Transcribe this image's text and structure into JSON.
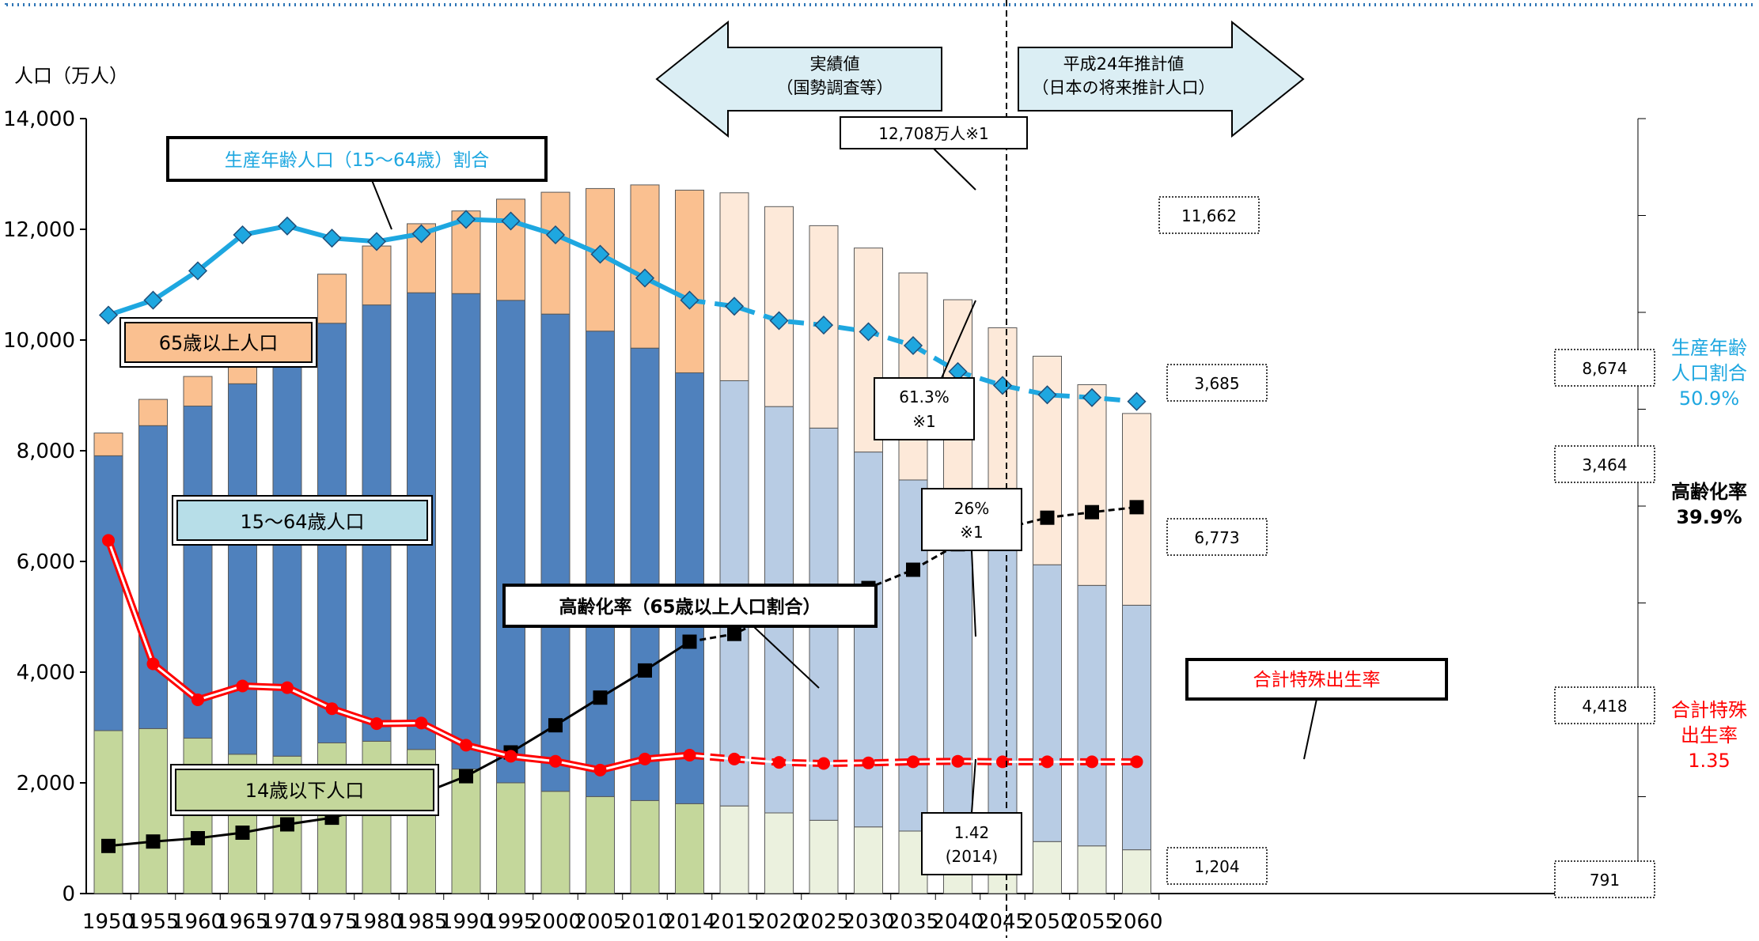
{
  "chart_data": {
    "type": "bar",
    "stacked": true,
    "ylabel": "人口（万人）",
    "ylim": [
      0,
      14000
    ],
    "y_ticks": [
      "0",
      "2,000",
      "4,000",
      "6,000",
      "8,000",
      "10,000",
      "12,000",
      "14,000"
    ],
    "categories": [
      "1950",
      "1955",
      "1960",
      "1965",
      "1970",
      "1975",
      "1980",
      "1985",
      "1990",
      "1995",
      "2000",
      "2005",
      "2010",
      "2014",
      "2015",
      "2020",
      "2025",
      "2030",
      "2035",
      "2040",
      "2045",
      "2050",
      "2055",
      "2060"
    ],
    "projection_start_index": 14,
    "series": [
      {
        "name": "14歳以下人口",
        "color": "#c4d79b",
        "projected_color": "#ebf1de",
        "values": [
          2943,
          2980,
          2807,
          2517,
          2482,
          2722,
          2751,
          2603,
          2249,
          2001,
          1847,
          1752,
          1680,
          1623,
          1583,
          1457,
          1324,
          1204,
          1129,
          1073,
          1012,
          939,
          861,
          791
        ]
      },
      {
        "name": "15〜64歳人口",
        "color": "#4f81bd",
        "projected_color": "#b8cce4",
        "values": [
          4966,
          5473,
          6000,
          6693,
          7157,
          7581,
          7883,
          8251,
          8590,
          8716,
          8622,
          8409,
          8174,
          7785,
          7682,
          7341,
          7085,
          6773,
          6343,
          5787,
          5353,
          5001,
          4706,
          4418
        ]
      },
      {
        "name": "65歳以上人口",
        "color": "#fac090",
        "projected_color": "#fde9d9",
        "values": [
          411,
          475,
          535,
          618,
          733,
          887,
          1065,
          1247,
          1493,
          1828,
          2201,
          2576,
          2948,
          3300,
          3395,
          3612,
          3657,
          3685,
          3741,
          3868,
          3856,
          3768,
          3626,
          3464
        ]
      }
    ],
    "lines": [
      {
        "name": "生産年齢人口（15〜64歳）割合",
        "color": "#1ea7e0",
        "marker": "diamond",
        "values_axis": [
          10450,
          10720,
          11250,
          11900,
          12060,
          11840,
          11780,
          11920,
          12180,
          12150,
          11900,
          11550,
          11120,
          10720,
          10610,
          10350,
          10270,
          10150,
          9900,
          9430,
          9180,
          9010,
          8960,
          8890
        ]
      },
      {
        "name": "高齢化率（65歳以上人口割合）",
        "color": "#000000",
        "marker": "square",
        "values_axis": [
          860,
          940,
          1000,
          1100,
          1250,
          1370,
          1590,
          1800,
          2120,
          2550,
          3040,
          3540,
          4030,
          4550,
          4690,
          5080,
          5300,
          5520,
          5850,
          6310,
          6590,
          6790,
          6890,
          6980
        ]
      },
      {
        "name": "合計特殊出生率",
        "color": "#ff0000",
        "marker": "circle",
        "values_axis": [
          6380,
          4150,
          3500,
          3750,
          3720,
          3340,
          3070,
          3080,
          2680,
          2480,
          2390,
          2230,
          2430,
          2500,
          2430,
          2370,
          2350,
          2360,
          2380,
          2390,
          2380,
          2380,
          2380,
          2380
        ]
      }
    ],
    "header_left": {
      "line1": "実績値",
      "line2": "（国勢調査等）"
    },
    "header_right": {
      "line1": "平成24年推計値",
      "line2": "（日本の将来推計人口）"
    },
    "callouts": {
      "total_2014": "12,708万人※1",
      "total_2025": "11,662",
      "total_2060": "8,674",
      "elder_2030": "3,685",
      "elder_2060": "3,464",
      "working_2030": "6,773",
      "working_2060": "4,418",
      "child_2030": "1,204",
      "child_2060": "791",
      "ratio_2014_l1": "61.3%",
      "ratio_2014_l2": "※1",
      "aging_2014_l1": "26%",
      "aging_2014_l2": "※1",
      "tfr_2014_l1": "1.42",
      "tfr_2014_l2": "(2014)"
    },
    "legend_boxes": {
      "elder": "65歳以上人口",
      "working": "15〜64歳人口",
      "child": "14歳以下人口",
      "ratio_line": "生産年齢人口（15〜64歳）割合",
      "aging_line": "高齢化率（65歳以上人口割合）",
      "tfr_line": "合計特殊出生率"
    },
    "right_labels": {
      "ratio_l1": "生産年齢",
      "ratio_l2": "人口割合",
      "ratio_value": "50.9%",
      "aging_l1": "高齢化率",
      "aging_value": "39.9%",
      "tfr_l1": "合計特殊",
      "tfr_l2": "出生率",
      "tfr_value": "1.35"
    }
  }
}
